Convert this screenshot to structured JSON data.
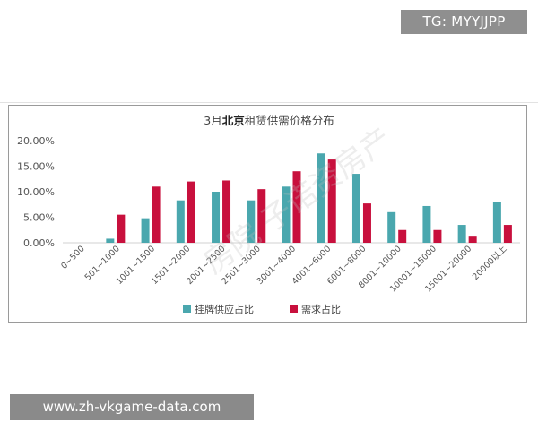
{
  "badges": {
    "top_right": "TG: MYYJJPP",
    "bottom_left": "www.zh-vkgame-data.com"
  },
  "watermark": "房院  子诺资房产",
  "chart_data": {
    "type": "bar",
    "title_prefix": "3月",
    "title_highlight": "北京",
    "title_suffix": "租赁供需价格分布",
    "categories": [
      "0~500",
      "501~1000",
      "1001~1500",
      "1501~2000",
      "2001~2500",
      "2501~3000",
      "3001~4000",
      "4001~6000",
      "6001~8000",
      "8001~10000",
      "10001~15000",
      "15001~20000",
      "20000以上"
    ],
    "series": [
      {
        "name": "挂牌供应占比",
        "color": "#4aa7ae",
        "values": [
          0.0,
          0.8,
          4.8,
          8.3,
          10.0,
          8.3,
          11.0,
          17.5,
          13.5,
          6.0,
          7.2,
          3.5,
          8.0
        ]
      },
      {
        "name": "需求占比",
        "color": "#c8103d",
        "values": [
          0.0,
          5.5,
          11.0,
          12.0,
          12.2,
          10.5,
          14.0,
          16.3,
          7.7,
          2.5,
          2.5,
          1.2,
          3.5
        ]
      }
    ],
    "y_ticks": [
      "0.00%",
      "5.00%",
      "10.00%",
      "15.00%",
      "20.00%"
    ],
    "ylim": [
      0,
      20
    ],
    "xlabel": "",
    "ylabel": "",
    "legend_position": "bottom-center",
    "grid": false
  }
}
